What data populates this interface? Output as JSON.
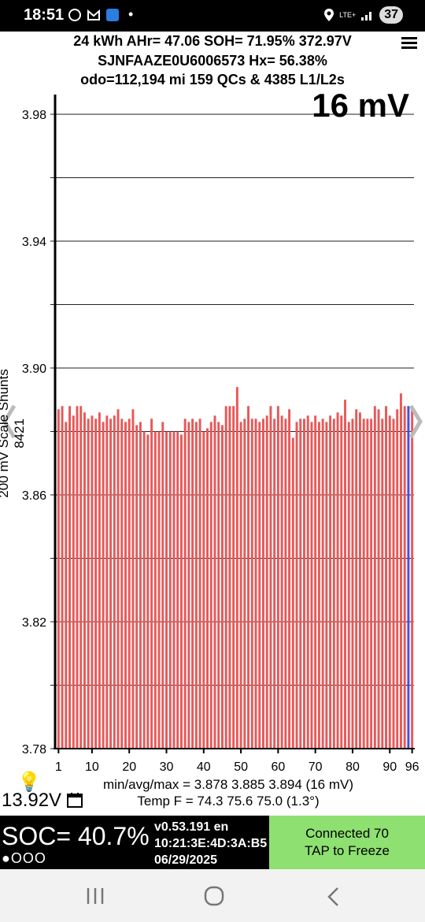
{
  "status_bar": {
    "time": "18:51",
    "network": "LTE+",
    "battery": "37"
  },
  "header": {
    "line1": "24 kWh  AHr= 47.06  SOH= 71.95%   372.97V",
    "line2": "SJNFAAZE0U6006573   Hx= 56.38%",
    "line3": "odo=112,194 mi 159 QCs & 4385 L1/L2s"
  },
  "scale_label": "16 mV",
  "vertical_label": "200 mV Scale  Shunts 8421",
  "chart_data": {
    "type": "bar",
    "ylim": [
      3.78,
      3.98
    ],
    "y_ticks": [
      3.98,
      3.94,
      3.9,
      3.86,
      3.82,
      3.78
    ],
    "y_tick_labels": [
      "3.98",
      "3.94",
      "3.90",
      "3.86",
      "3.82",
      "3.78"
    ],
    "x_tick_labels": [
      "1",
      "10",
      "20",
      "30",
      "40",
      "50",
      "60",
      "70",
      "80",
      "90",
      "96"
    ],
    "x_tick_values": [
      1,
      10,
      20,
      30,
      40,
      50,
      60,
      70,
      80,
      90,
      96
    ],
    "bar_color": "#e85858",
    "highlight_color": "#4a4adf",
    "highlight_index": 94,
    "values": [
      3.887,
      3.888,
      3.883,
      3.888,
      3.885,
      3.888,
      3.888,
      3.886,
      3.884,
      3.885,
      3.884,
      3.886,
      3.883,
      3.885,
      3.884,
      3.885,
      3.887,
      3.884,
      3.883,
      3.884,
      3.887,
      3.882,
      3.883,
      3.88,
      3.879,
      3.884,
      3.88,
      3.88,
      3.883,
      3.88,
      3.88,
      3.88,
      3.88,
      3.879,
      3.884,
      3.883,
      3.884,
      3.883,
      3.884,
      3.88,
      3.881,
      3.883,
      3.885,
      3.883,
      3.882,
      3.888,
      3.888,
      3.888,
      3.894,
      3.883,
      3.884,
      3.888,
      3.884,
      3.884,
      3.883,
      3.884,
      3.885,
      3.888,
      3.884,
      3.888,
      3.885,
      3.884,
      3.887,
      3.878,
      3.883,
      3.884,
      3.884,
      3.885,
      3.883,
      3.885,
      3.883,
      3.884,
      3.883,
      3.885,
      3.884,
      3.886,
      3.885,
      3.89,
      3.883,
      3.884,
      3.887,
      3.886,
      3.884,
      3.884,
      3.884,
      3.888,
      3.887,
      3.884,
      3.888,
      3.885,
      3.884,
      3.887,
      3.892,
      3.888,
      3.888,
      3.887
    ]
  },
  "battery_voltage": "13.92V",
  "stats": {
    "line1": "min/avg/max = 3.878 3.885 3.894  (16 mV)",
    "line2": "Temp F = 74.3  75.6  75.0  (1.3°)"
  },
  "soc": {
    "label": "SOC= 40.7%",
    "dots": "●OOO"
  },
  "version": {
    "line1": "v0.53.191 en",
    "line2": "10:21:3E:4D:3A:B5",
    "line3": "06/29/2025"
  },
  "connected": {
    "line1": "Connected 70",
    "line2": "TAP to Freeze"
  },
  "icons": {
    "menu": "hamburger-menu-icon",
    "bulb": "light-bulb-icon",
    "calendar": "calendar-icon",
    "back": "back-nav-icon",
    "home": "home-nav-icon",
    "recents": "recents-nav-icon"
  }
}
